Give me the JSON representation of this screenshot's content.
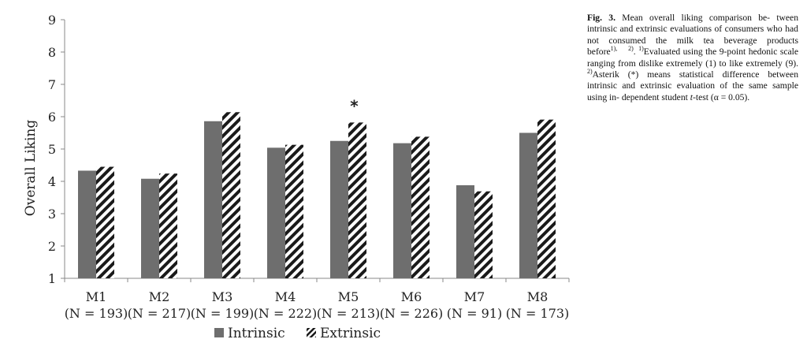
{
  "chart_data": {
    "type": "bar",
    "ylabel": "Overall Liking",
    "xlabel": "",
    "ylim": [
      1,
      9
    ],
    "yticks": [
      "1",
      "2",
      "3",
      "4",
      "5",
      "6",
      "7",
      "8",
      "9"
    ],
    "categories": [
      {
        "name": "M1",
        "n": "(N = 193)"
      },
      {
        "name": "M2",
        "n": "(N = 217)"
      },
      {
        "name": "M3",
        "n": "(N = 199)"
      },
      {
        "name": "M4",
        "n": "(N = 222)"
      },
      {
        "name": "M5",
        "n": "(N = 213)"
      },
      {
        "name": "M6",
        "n": "(N = 226)"
      },
      {
        "name": "M7",
        "n": "(N = 91)"
      },
      {
        "name": "M8",
        "n": "(N = 173)"
      }
    ],
    "series": [
      {
        "name": "Intrinsic",
        "values": [
          4.33,
          4.08,
          5.86,
          5.04,
          5.25,
          5.18,
          3.88,
          5.5
        ],
        "fill": "solid"
      },
      {
        "name": "Extrinsic",
        "values": [
          4.45,
          4.24,
          6.14,
          5.13,
          5.82,
          5.38,
          3.69,
          5.91
        ],
        "fill": "diagonal-hatch"
      }
    ],
    "annotations": [
      {
        "category_index": 4,
        "text": "*"
      }
    ],
    "legend_position": "bottom-center",
    "grid": false,
    "colors": {
      "intrinsic": "#6e6e6e",
      "extrinsic_stripe": "#1a1a1a",
      "axis": "#888888"
    }
  },
  "caption": {
    "fig_label": "Fig. 3.",
    "lines": [
      "Mean overall liking comparison be-",
      "tween intrinsic and extrinsic evaluations of",
      "consumers who had not consumed the milk",
      "tea beverage products before",
      "Evaluated using the 9-point hedonic scale",
      "ranging from dislike extremely (1) to like",
      "extremely (9).",
      "Asterik (*) means statistical",
      "difference between intrinsic and extrinsic",
      "evaluation of the same sample using in-",
      "dependent student",
      "t",
      "-test (α = 0.05)."
    ],
    "sup1": "1),",
    "sup2": "2)",
    "sup1b": "1)",
    "sup2b": "2)"
  }
}
